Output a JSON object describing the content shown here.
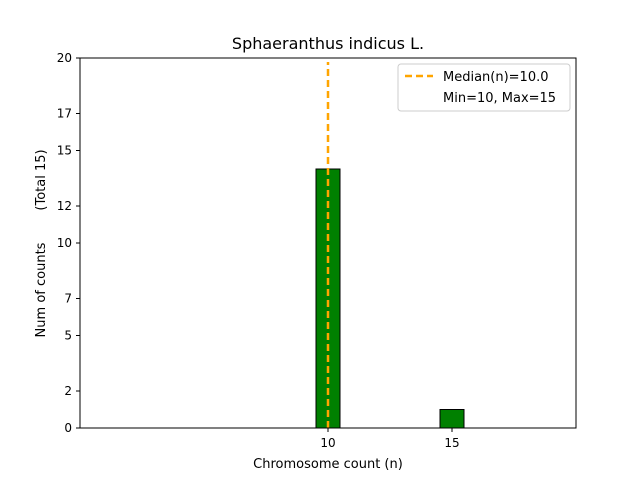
{
  "chart_data": {
    "type": "bar",
    "title": "Sphaeranthus indicus L.",
    "xlabel": "Chromosome count (n)",
    "ylabel": "Num of counts",
    "ylabel_secondary": "(Total 15)",
    "x_ticks": [
      10,
      15
    ],
    "y_ticks": [
      0,
      2,
      5,
      7,
      10,
      12,
      15,
      17,
      20
    ],
    "xlim": [
      0,
      20
    ],
    "ylim": [
      0,
      20
    ],
    "bars": [
      {
        "x": 10,
        "value": 14
      },
      {
        "x": 15,
        "value": 1
      }
    ],
    "bar_color": "#008000",
    "bar_edge_color": "#000000",
    "baseline_end": 18.5,
    "median_line": {
      "x": 10,
      "color": "#FFA500",
      "style": "dashed"
    },
    "legend": {
      "placement": "top-right",
      "entries": [
        "Median(n)=10.0",
        "Min=10, Max=15"
      ]
    },
    "grid": false
  }
}
